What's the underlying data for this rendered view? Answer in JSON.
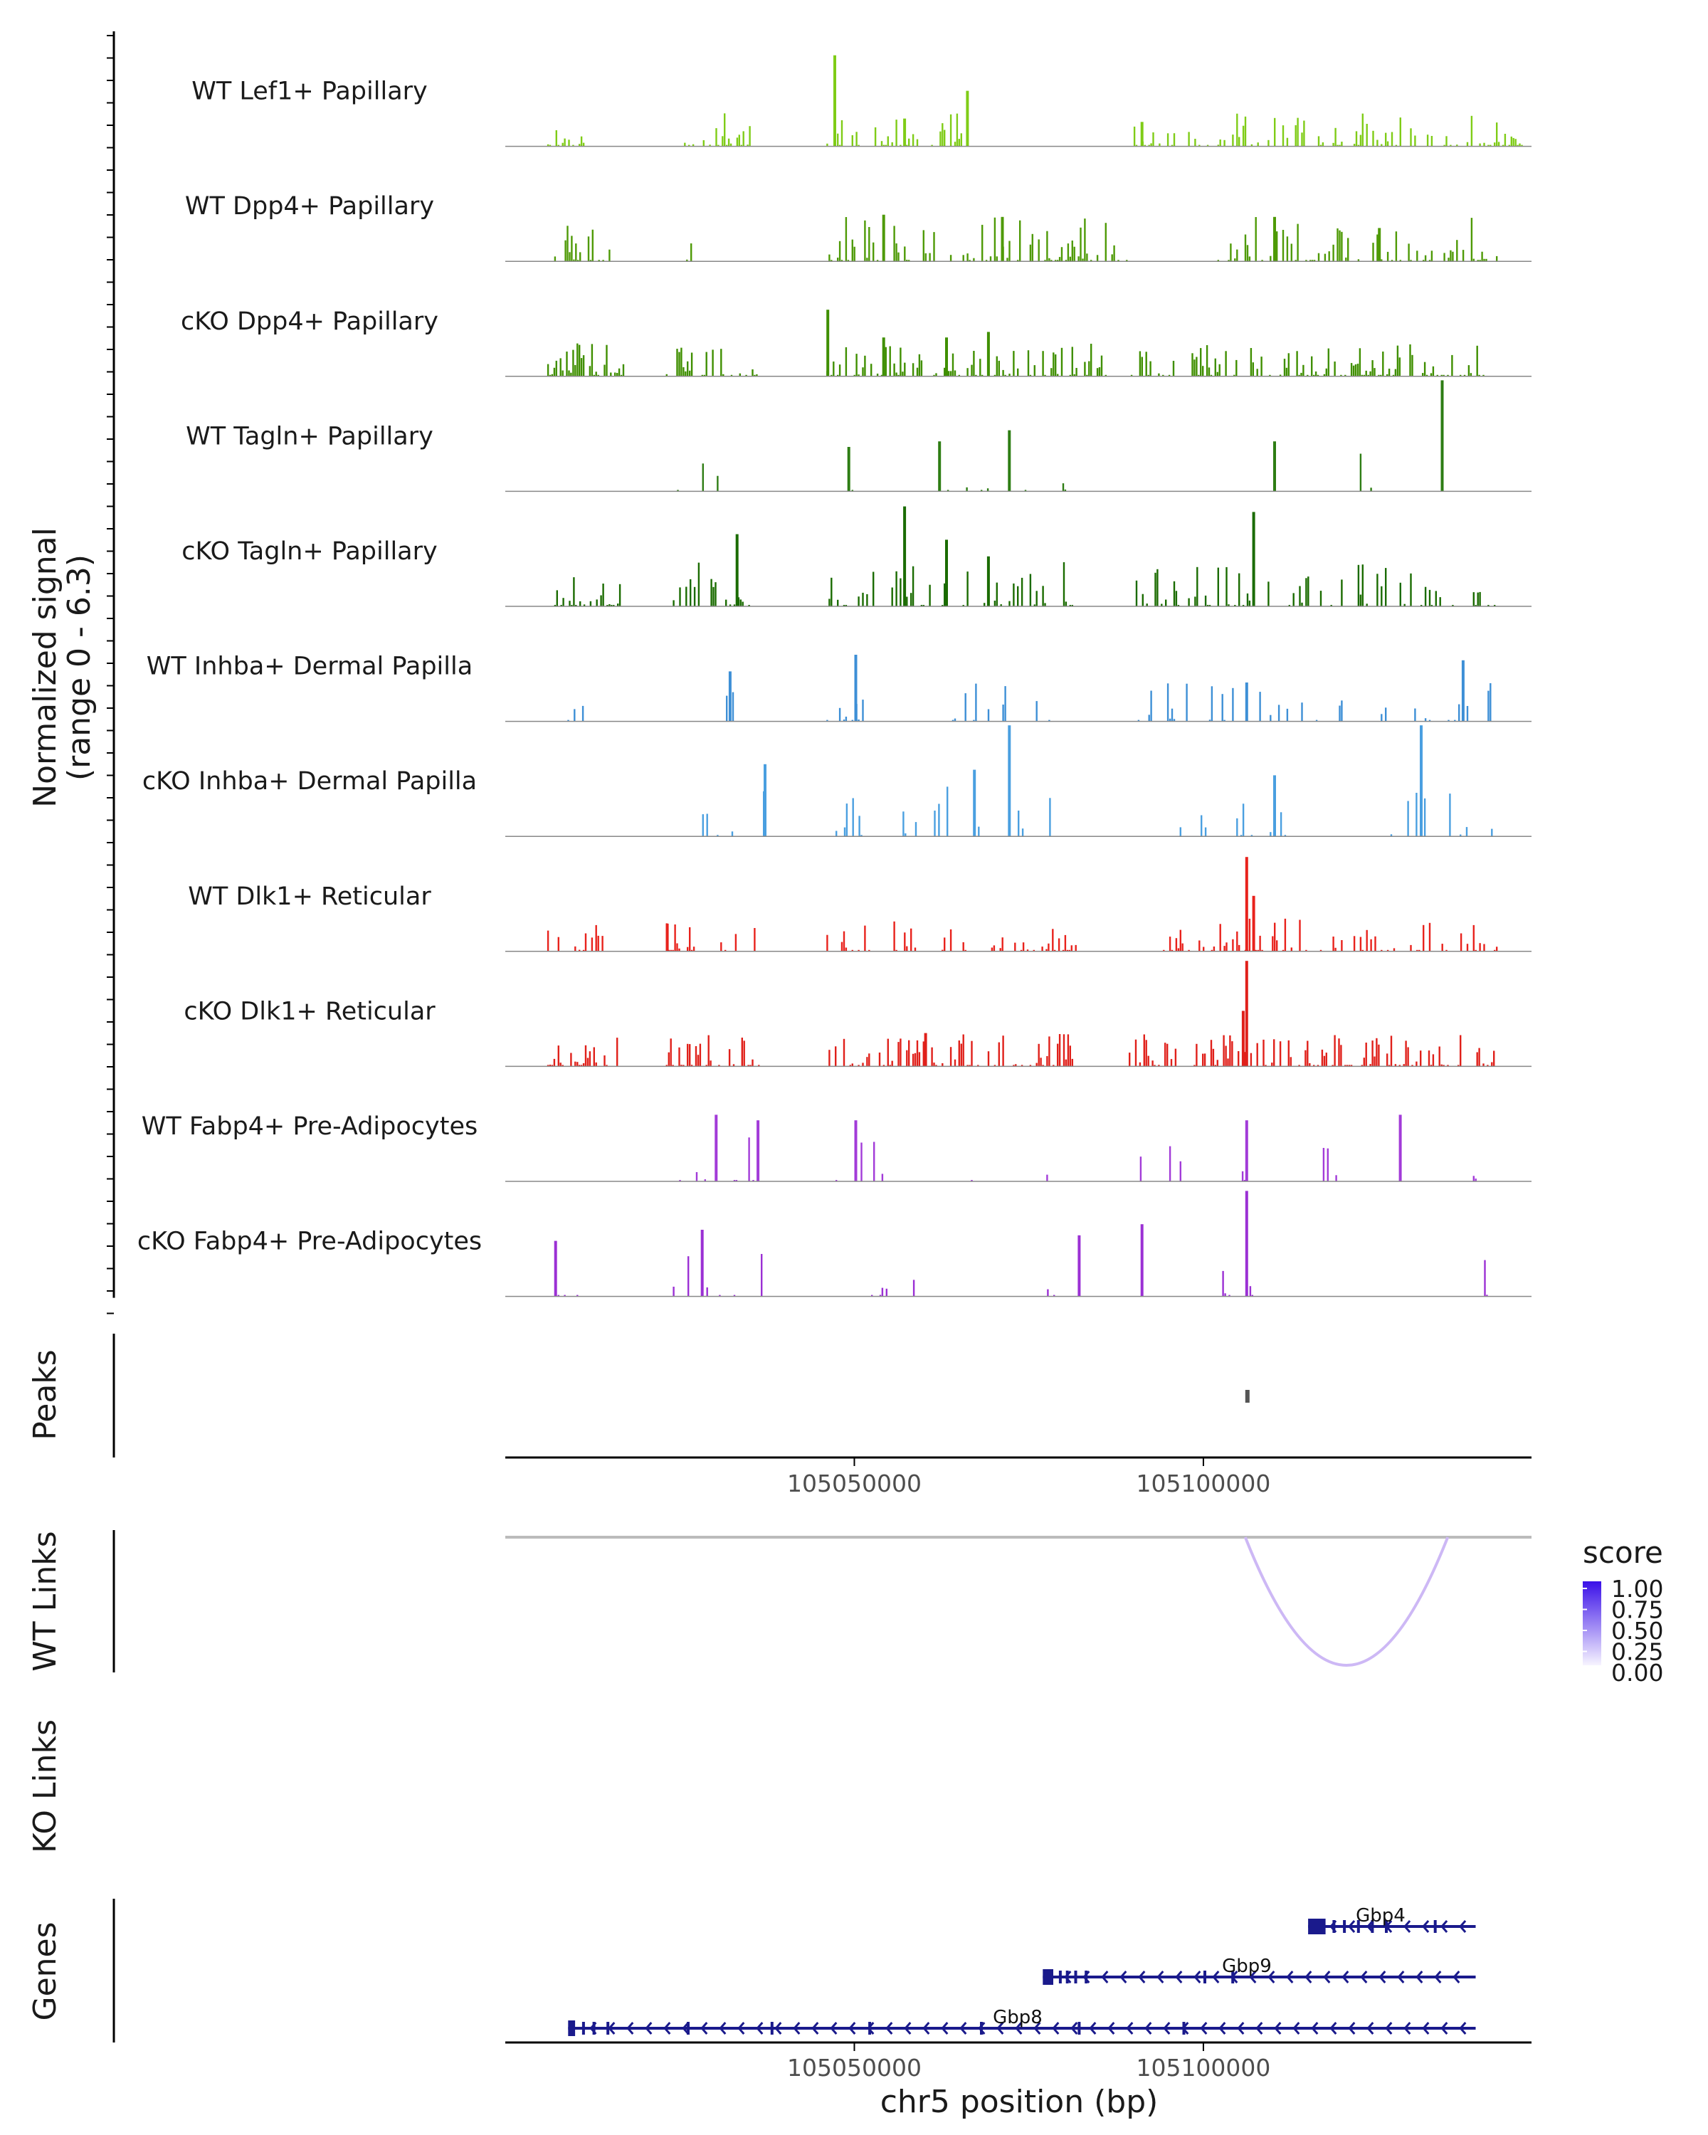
{
  "chart_data": {
    "type": "genome-browser-coverage",
    "region": {
      "chrom": "chr5",
      "start": 105000000,
      "end": 105147000
    },
    "y_axis_label_line1": "Normalized signal",
    "y_axis_label_line2": "(range 0 - 6.3)",
    "y_range": [
      0,
      6.3
    ],
    "tracks": [
      {
        "label": "WT Lef1+ Papillary",
        "color": "#7FCC17",
        "seed": 11,
        "density": 0.45,
        "scale": 0.3,
        "clusters": [
          [
            105006000,
            105012000
          ],
          [
            105025000,
            105035000
          ],
          [
            105046000,
            105066000
          ],
          [
            105090000,
            105147000
          ]
        ],
        "spikes": [
          [
            105047000,
            0.82
          ],
          [
            105066000,
            0.5
          ],
          [
            105057000,
            0.25
          ],
          [
            105091000,
            0.22
          ]
        ]
      },
      {
        "label": "WT Dpp4+ Papillary",
        "color": "#4E9A06",
        "seed": 23,
        "density": 0.45,
        "scale": 0.4,
        "clusters": [
          [
            105007000,
            105015000
          ],
          [
            105025000,
            105027000
          ],
          [
            105046000,
            105090000
          ],
          [
            105102000,
            105142000
          ]
        ],
        "spikes": [
          [
            105054000,
            0.42
          ],
          [
            105071000,
            0.4
          ],
          [
            105110000,
            0.4
          ],
          [
            105125000,
            0.3
          ]
        ]
      },
      {
        "label": "cKO Dpp4+ Papillary",
        "color": "#3F8F00",
        "seed": 37,
        "density": 0.5,
        "scale": 0.3,
        "clusters": [
          [
            105006000,
            105017000
          ],
          [
            105023000,
            105037000
          ],
          [
            105046000,
            105086000
          ],
          [
            105089000,
            105142000
          ]
        ],
        "spikes": [
          [
            105046000,
            0.6
          ],
          [
            105054000,
            0.35
          ],
          [
            105063000,
            0.35
          ],
          [
            105069000,
            0.4
          ]
        ]
      },
      {
        "label": "WT Tagln+ Papillary",
        "color": "#2E7D14",
        "seed": 41,
        "density": 0.08,
        "scale": 0.35,
        "clusters": [
          [
            105011000,
            105012000
          ],
          [
            105024000,
            105033000
          ],
          [
            105046000,
            105051000
          ],
          [
            105060000,
            105082000
          ],
          [
            105096000,
            105098000
          ],
          [
            105108000,
            105110000
          ],
          [
            105120000,
            105124000
          ],
          [
            105133000,
            105135000
          ]
        ],
        "spikes": [
          [
            105072000,
            0.55
          ],
          [
            105062000,
            0.45
          ],
          [
            105134000,
            1.0
          ],
          [
            105110000,
            0.45
          ],
          [
            105049000,
            0.4
          ]
        ]
      },
      {
        "label": "cKO Tagln+ Papillary",
        "color": "#1A6B00",
        "seed": 53,
        "density": 0.35,
        "scale": 0.4,
        "clusters": [
          [
            105007000,
            105017000
          ],
          [
            105024000,
            105036000
          ],
          [
            105046000,
            105082000
          ],
          [
            105090000,
            105142000
          ]
        ],
        "spikes": [
          [
            105033000,
            0.65
          ],
          [
            105057000,
            0.9
          ],
          [
            105063000,
            0.6
          ],
          [
            105107000,
            0.85
          ],
          [
            105069000,
            0.45
          ]
        ]
      },
      {
        "label": "WT Inhba+ Dermal Papilla",
        "color": "#3D8FD6",
        "seed": 67,
        "density": 0.18,
        "scale": 0.35,
        "clusters": [
          [
            105008000,
            105012000
          ],
          [
            105031000,
            105033000
          ],
          [
            105046000,
            105052000
          ],
          [
            105064000,
            105080000
          ],
          [
            105090000,
            105142000
          ]
        ],
        "spikes": [
          [
            105050000,
            0.6
          ],
          [
            105032000,
            0.45
          ],
          [
            105137000,
            0.55
          ],
          [
            105106000,
            0.35
          ]
        ]
      },
      {
        "label": "cKO Inhba+ Dermal Papilla",
        "color": "#4A9FE0",
        "seed": 79,
        "density": 0.12,
        "scale": 0.45,
        "clusters": [
          [
            105027000,
            105037000
          ],
          [
            105047000,
            105051000
          ],
          [
            105056000,
            105080000
          ],
          [
            105096000,
            105114000
          ],
          [
            105118000,
            105123000
          ],
          [
            105125000,
            105142000
          ]
        ],
        "spikes": [
          [
            105072000,
            1.0
          ],
          [
            105131000,
            1.0
          ],
          [
            105037000,
            0.65
          ],
          [
            105110000,
            0.55
          ],
          [
            105067000,
            0.6
          ]
        ]
      },
      {
        "label": "WT Dlk1+ Reticular",
        "color": "#E8221C",
        "seed": 83,
        "density": 0.35,
        "scale": 0.3,
        "clusters": [
          [
            105006000,
            105015000
          ],
          [
            105023000,
            105036000
          ],
          [
            105046000,
            105066000
          ],
          [
            105069000,
            105082000
          ],
          [
            105093000,
            105142000
          ]
        ],
        "spikes": [
          [
            105106000,
            0.85
          ],
          [
            105107000,
            0.5
          ],
          [
            105023000,
            0.25
          ]
        ]
      },
      {
        "label": "cKO Dlk1+ Reticular",
        "color": "#E0201A",
        "seed": 97,
        "density": 0.5,
        "scale": 0.3,
        "clusters": [
          [
            105006000,
            105016000
          ],
          [
            105023000,
            105037000
          ],
          [
            105046000,
            105082000
          ],
          [
            105089000,
            105142000
          ]
        ],
        "spikes": [
          [
            105106000,
            0.95
          ],
          [
            105105500,
            0.5
          ],
          [
            105060000,
            0.3
          ]
        ]
      },
      {
        "label": "WT Fabp4+ Pre-Adipocytes",
        "color": "#A23BD8",
        "seed": 101,
        "density": 0.12,
        "scale": 0.4,
        "clusters": [
          [
            105014000,
            105017000
          ],
          [
            105024000,
            105037000
          ],
          [
            105047000,
            105055000
          ],
          [
            105064000,
            105082000
          ],
          [
            105090000,
            105101000
          ],
          [
            105104000,
            105107000
          ],
          [
            105115000,
            105119000
          ],
          [
            105121000,
            105124000
          ],
          [
            105133000,
            105134000
          ],
          [
            105138000,
            105140000
          ]
        ],
        "spikes": [
          [
            105030000,
            0.6
          ],
          [
            105036000,
            0.55
          ],
          [
            105050000,
            0.55
          ],
          [
            105106000,
            0.55
          ],
          [
            105128000,
            0.6
          ]
        ]
      },
      {
        "label": "cKO Fabp4+ Pre-Adipocytes",
        "color": "#9B30D4",
        "seed": 113,
        "density": 0.12,
        "scale": 0.4,
        "clusters": [
          [
            105006000,
            105016000
          ],
          [
            105024000,
            105037000
          ],
          [
            105050000,
            105060000
          ],
          [
            105077000,
            105082000
          ],
          [
            105090000,
            105091000
          ],
          [
            105100000,
            105104000
          ],
          [
            105106000,
            105109000
          ],
          [
            105121000,
            105142000
          ]
        ],
        "spikes": [
          [
            105106000,
            0.95
          ],
          [
            105028000,
            0.6
          ],
          [
            105082000,
            0.55
          ],
          [
            105091000,
            0.65
          ],
          [
            105007000,
            0.5
          ]
        ]
      }
    ],
    "peaks": {
      "label": "Peaks",
      "items": [
        [
          105106000,
          105106600
        ]
      ]
    },
    "axis": {
      "ticks": [
        105050000,
        105100000
      ],
      "tick_labels": [
        "105050000",
        "105100000"
      ]
    },
    "links": [
      {
        "label": "WT Links",
        "items": [
          {
            "start": 105106000,
            "end": 105135000,
            "score": 0.3
          }
        ]
      },
      {
        "label": "KO Links",
        "items": []
      }
    ],
    "score_legend": {
      "title": "score",
      "labels": [
        "1.00",
        "0.75",
        "0.50",
        "0.25",
        "0.00"
      ],
      "low_color": "#f7f4ff",
      "high_color": "#3a10e8"
    },
    "genes": {
      "label": "Genes",
      "color": "#1a1a8c",
      "items": [
        {
          "name": "Gbp4",
          "start": 105115000,
          "end": 105139000,
          "strand": "-",
          "exons": [
            [
              105115000,
              105117500
            ],
            [
              105118500,
              105118800
            ],
            [
              105120000,
              105120400
            ],
            [
              105122000,
              105122300
            ],
            [
              105124000,
              105124300
            ],
            [
              105126000,
              105126300
            ],
            [
              105133000,
              105133300
            ]
          ]
        },
        {
          "name": "Gbp9",
          "start": 105077000,
          "end": 105139000,
          "strand": "-",
          "exons": [
            [
              105077000,
              105078500
            ],
            [
              105079300,
              105079600
            ],
            [
              105080300,
              105080600
            ],
            [
              105081500,
              105081800
            ],
            [
              105083000,
              105083300
            ],
            [
              105100000,
              105100300
            ],
            [
              105104000,
              105104300
            ]
          ]
        },
        {
          "name": "Gbp8",
          "start": 105009000,
          "end": 105139000,
          "strand": "-",
          "exons": [
            [
              105009000,
              105010000
            ],
            [
              105011000,
              105011300
            ],
            [
              105012500,
              105012800
            ],
            [
              105014500,
              105014800
            ],
            [
              105026000,
              105026300
            ],
            [
              105038000,
              105038300
            ],
            [
              105052000,
              105052300
            ],
            [
              105068000,
              105068300
            ],
            [
              105082000,
              105082300
            ],
            [
              105097000,
              105097300
            ]
          ]
        }
      ]
    },
    "x_label": "chr5 position (bp)"
  }
}
